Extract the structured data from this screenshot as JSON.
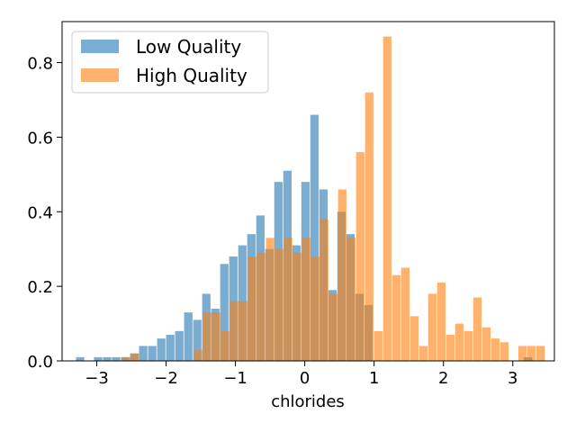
{
  "chart_data": {
    "type": "histogram",
    "xlabel": "chlorides",
    "ylabel": "",
    "title": "",
    "xlim": [
      -3.5,
      3.6
    ],
    "ylim": [
      0,
      0.91
    ],
    "bin_width": 0.12,
    "xticks": [
      -3,
      -2,
      -1,
      0,
      1,
      2,
      3
    ],
    "xtick_labels": [
      "−3",
      "−2",
      "−1",
      "0",
      "1",
      "2",
      "3"
    ],
    "yticks": [
      0.0,
      0.2,
      0.4,
      0.6,
      0.8
    ],
    "ytick_labels": [
      "0.0",
      "0.2",
      "0.4",
      "0.6",
      "0.8"
    ],
    "legend_position": "upper-left",
    "grid": false,
    "series": [
      {
        "name": "Low Quality",
        "color": "#1f77b4",
        "alpha": 0.6,
        "bins": [
          {
            "x0": -3.3,
            "y": 0.01
          },
          {
            "x0": -3.04,
            "y": 0.01
          },
          {
            "x0": -2.91,
            "y": 0.01
          },
          {
            "x0": -2.78,
            "y": 0.01
          },
          {
            "x0": -2.65,
            "y": 0.01
          },
          {
            "x0": -2.52,
            "y": 0.02
          },
          {
            "x0": -2.39,
            "y": 0.04
          },
          {
            "x0": -2.26,
            "y": 0.04
          },
          {
            "x0": -2.13,
            "y": 0.06
          },
          {
            "x0": -2.0,
            "y": 0.07
          },
          {
            "x0": -1.87,
            "y": 0.08
          },
          {
            "x0": -1.74,
            "y": 0.13
          },
          {
            "x0": -1.61,
            "y": 0.11
          },
          {
            "x0": -1.48,
            "y": 0.18
          },
          {
            "x0": -1.35,
            "y": 0.14
          },
          {
            "x0": -1.22,
            "y": 0.26
          },
          {
            "x0": -1.09,
            "y": 0.28
          },
          {
            "x0": -0.96,
            "y": 0.31
          },
          {
            "x0": -0.83,
            "y": 0.34
          },
          {
            "x0": -0.7,
            "y": 0.39
          },
          {
            "x0": -0.57,
            "y": 0.3
          },
          {
            "x0": -0.44,
            "y": 0.48
          },
          {
            "x0": -0.31,
            "y": 0.51
          },
          {
            "x0": -0.18,
            "y": 0.31
          },
          {
            "x0": -0.05,
            "y": 0.48
          },
          {
            "x0": 0.08,
            "y": 0.66
          },
          {
            "x0": 0.21,
            "y": 0.46
          },
          {
            "x0": 0.34,
            "y": 0.19
          },
          {
            "x0": 0.47,
            "y": 0.4
          },
          {
            "x0": 0.6,
            "y": 0.34
          },
          {
            "x0": 0.73,
            "y": 0.18
          },
          {
            "x0": 0.86,
            "y": 0.15
          },
          {
            "x0": 3.16,
            "y": 0.01
          }
        ]
      },
      {
        "name": "High Quality",
        "color": "#ff7f0e",
        "alpha": 0.6,
        "bins": [
          {
            "x0": -2.64,
            "y": 0.01
          },
          {
            "x0": -2.51,
            "y": 0.02
          },
          {
            "x0": -1.6,
            "y": 0.03
          },
          {
            "x0": -1.47,
            "y": 0.13
          },
          {
            "x0": -1.34,
            "y": 0.13
          },
          {
            "x0": -1.21,
            "y": 0.08
          },
          {
            "x0": -1.08,
            "y": 0.16
          },
          {
            "x0": -0.95,
            "y": 0.16
          },
          {
            "x0": -0.82,
            "y": 0.28
          },
          {
            "x0": -0.69,
            "y": 0.29
          },
          {
            "x0": -0.56,
            "y": 0.33
          },
          {
            "x0": -0.43,
            "y": 0.3
          },
          {
            "x0": -0.3,
            "y": 0.33
          },
          {
            "x0": -0.17,
            "y": 0.29
          },
          {
            "x0": -0.04,
            "y": 0.33
          },
          {
            "x0": 0.09,
            "y": 0.28
          },
          {
            "x0": 0.22,
            "y": 0.38
          },
          {
            "x0": 0.35,
            "y": 0.18
          },
          {
            "x0": 0.48,
            "y": 0.46
          },
          {
            "x0": 0.61,
            "y": 0.33
          },
          {
            "x0": 0.74,
            "y": 0.56
          },
          {
            "x0": 0.87,
            "y": 0.72
          },
          {
            "x0": 1.0,
            "y": 0.08
          },
          {
            "x0": 1.13,
            "y": 0.87
          },
          {
            "x0": 1.26,
            "y": 0.23
          },
          {
            "x0": 1.39,
            "y": 0.25
          },
          {
            "x0": 1.52,
            "y": 0.12
          },
          {
            "x0": 1.65,
            "y": 0.04
          },
          {
            "x0": 1.78,
            "y": 0.18
          },
          {
            "x0": 1.91,
            "y": 0.21
          },
          {
            "x0": 2.04,
            "y": 0.07
          },
          {
            "x0": 2.17,
            "y": 0.1
          },
          {
            "x0": 2.3,
            "y": 0.08
          },
          {
            "x0": 2.43,
            "y": 0.17
          },
          {
            "x0": 2.56,
            "y": 0.09
          },
          {
            "x0": 2.69,
            "y": 0.06
          },
          {
            "x0": 2.82,
            "y": 0.05
          },
          {
            "x0": 3.08,
            "y": 0.04
          },
          {
            "x0": 3.21,
            "y": 0.04
          },
          {
            "x0": 3.34,
            "y": 0.04
          }
        ]
      }
    ]
  }
}
